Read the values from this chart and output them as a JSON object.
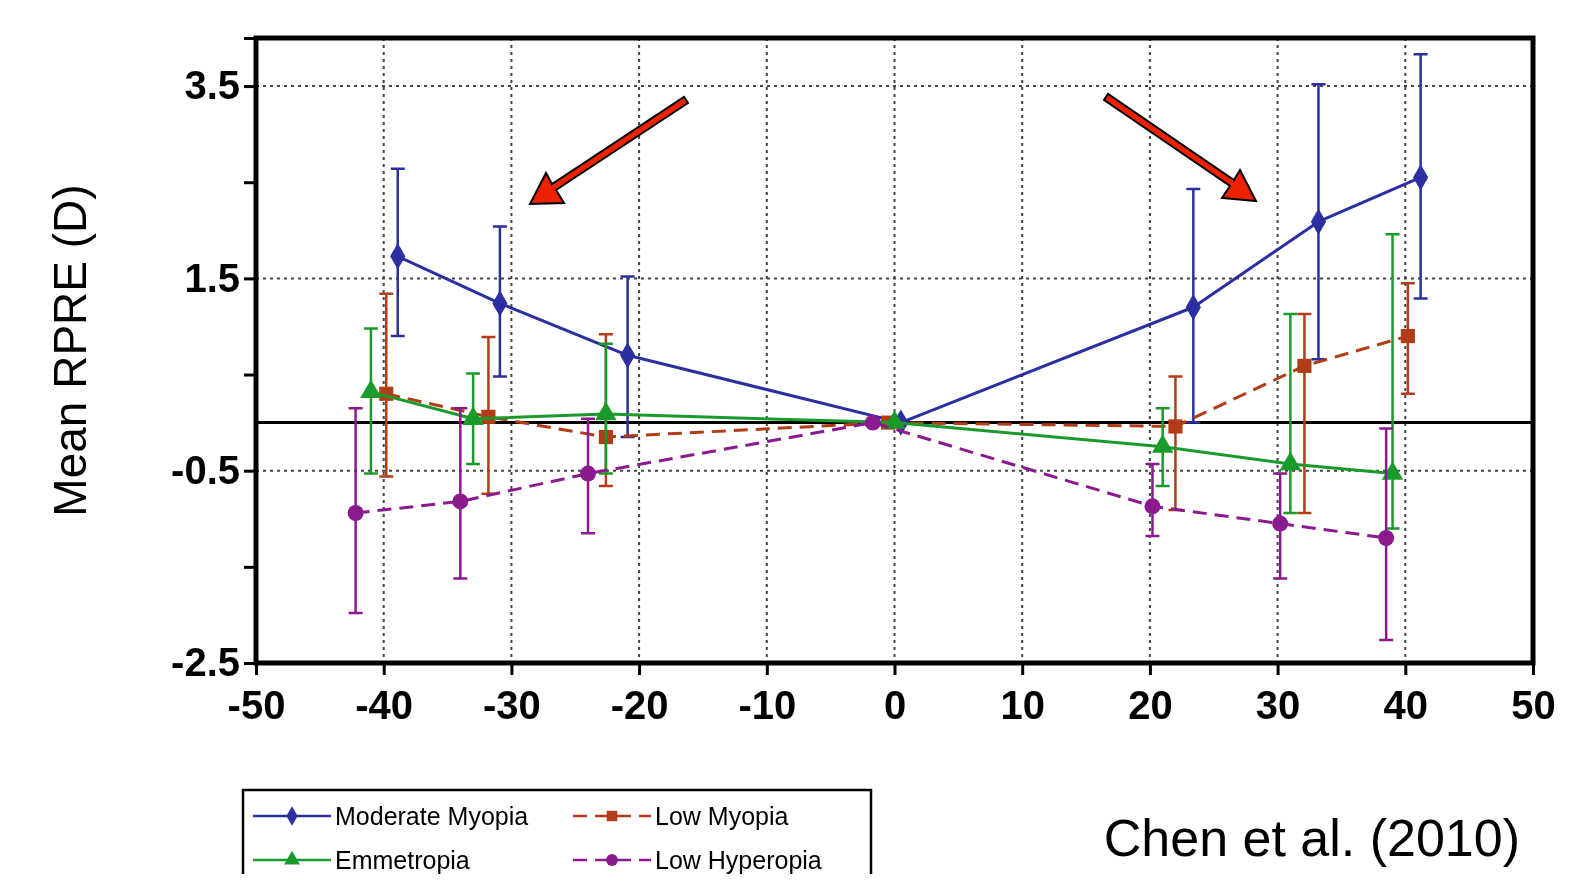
{
  "chart_data": {
    "type": "line",
    "ylabel": "Mean RPRE (D)",
    "xlim": [
      -50,
      50
    ],
    "xticks": [
      -50,
      -40,
      -30,
      -20,
      -10,
      0,
      10,
      20,
      30,
      40,
      50
    ],
    "ylim": [
      -2.5,
      4
    ],
    "yticks": [
      -2.5,
      {
        "value": -1.5,
        "label": null
      },
      -0.5,
      {
        "value": 0.5,
        "label": null
      },
      1.5,
      {
        "value": 2.5,
        "label": null
      },
      3.5
    ],
    "grid": true,
    "legend": "bottom",
    "ref_lines": [
      {
        "axis": "y",
        "value": 0,
        "color": "#000000",
        "line_style": "solid"
      }
    ],
    "annotations": [
      "Chen et al. (2010)"
    ],
    "series": [
      {
        "name": "Moderate Myopia",
        "color": "#2b2fa0",
        "marker": "diamond",
        "line_style": "solid",
        "x": [
          -38.9,
          -30.9,
          -20.9,
          0.5,
          23.4,
          33.2,
          41.2
        ],
        "values": [
          1.73,
          1.24,
          0.7,
          0,
          1.2,
          2.09,
          2.55
        ],
        "errors": [
          [
            0.9,
            2.64
          ],
          [
            0.48,
            2.04
          ],
          [
            -0.15,
            1.52
          ],
          null,
          [
            0,
            2.43
          ],
          [
            0.66,
            3.52
          ],
          [
            1.29,
            3.83
          ]
        ]
      },
      {
        "name": "Low Myopia",
        "color": "#b23c17",
        "marker": "square",
        "line_style": "dashed",
        "x": [
          -39.8,
          -31.8,
          -22.6,
          -0.5,
          22,
          32.1,
          40.2
        ],
        "values": [
          0.3,
          0.06,
          -0.15,
          0,
          -0.04,
          0.59,
          0.9
        ],
        "errors": [
          [
            -0.56,
            1.34
          ],
          [
            -0.74,
            0.89
          ],
          [
            -0.66,
            0.92
          ],
          null,
          [
            -0.91,
            0.48
          ],
          [
            -0.94,
            1.13
          ],
          [
            0.3,
            1.45
          ]
        ]
      },
      {
        "name": "Emmetropia",
        "color": "#1a9a2a",
        "marker": "triangle",
        "line_style": "solid",
        "x": [
          -41,
          -33,
          -22.6,
          0,
          21,
          31,
          39
        ],
        "values": [
          0.32,
          0.04,
          0.09,
          0,
          -0.25,
          -0.43,
          -0.53
        ],
        "errors": [
          [
            -0.53,
            0.98
          ],
          [
            -0.43,
            0.51
          ],
          [
            -0.53,
            0.82
          ],
          null,
          [
            -0.66,
            0.15
          ],
          [
            -0.94,
            1.13
          ],
          [
            -1.1,
            1.96
          ]
        ]
      },
      {
        "name": "Low Hyperopia",
        "color": "#8a1a8e",
        "marker": "circle",
        "line_style": "dashed",
        "x": [
          -42.2,
          -34,
          -24,
          -1.7,
          20.2,
          30.2,
          38.5
        ],
        "values": [
          -0.94,
          -0.82,
          -0.53,
          0,
          -0.87,
          -1.05,
          -1.2
        ],
        "errors": [
          [
            -1.98,
            0.15
          ],
          [
            -1.62,
            0.15
          ],
          [
            -1.15,
            0.04
          ],
          null,
          [
            -1.18,
            -0.43
          ],
          [
            -1.62,
            -0.53
          ],
          [
            -2.26,
            -0.06
          ]
        ]
      }
    ]
  }
}
